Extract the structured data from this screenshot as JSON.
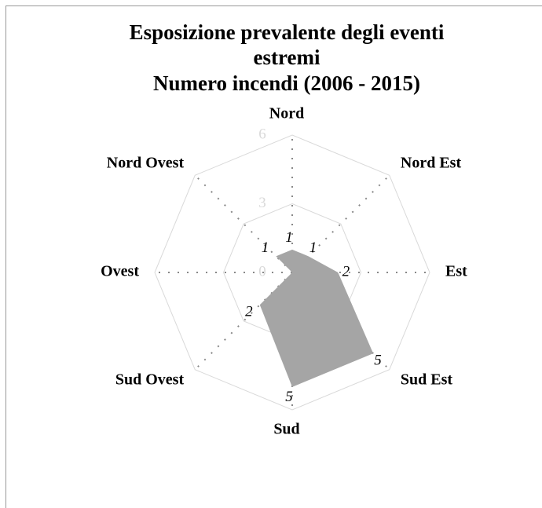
{
  "chart_data": {
    "type": "radar",
    "title": [
      "Esposizione prevalente degli eventi",
      "estremi",
      "Numero incendi (2006 - 2015)"
    ],
    "categories": [
      "Nord",
      "Nord Est",
      "Est",
      "Sud Est",
      "Sud",
      "Sud Ovest",
      "Ovest",
      "Nord Ovest"
    ],
    "values": [
      1,
      1,
      2,
      5,
      5,
      2,
      0,
      1
    ],
    "color": "#a5a5a5",
    "ylim": [
      0,
      6
    ],
    "yticks": [
      0,
      3,
      6
    ],
    "grid": true
  }
}
